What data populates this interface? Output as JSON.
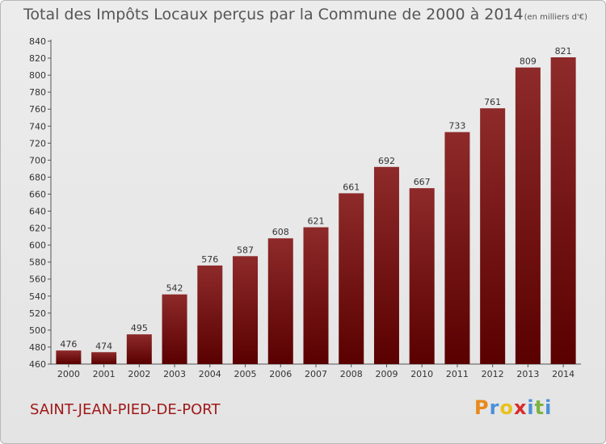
{
  "chart_data": {
    "type": "bar",
    "title": "Total des Impôts Locaux perçus par la Commune de 2000 à 2014",
    "unit": "(en milliers d'€)",
    "categories": [
      "2000",
      "2001",
      "2002",
      "2003",
      "2004",
      "2005",
      "2006",
      "2007",
      "2008",
      "2009",
      "2010",
      "2011",
      "2012",
      "2013",
      "2014"
    ],
    "values": [
      476,
      474,
      495,
      542,
      576,
      587,
      608,
      621,
      661,
      692,
      667,
      733,
      761,
      809,
      821
    ],
    "ylim": [
      460,
      840
    ],
    "yticks": [
      460,
      480,
      500,
      520,
      540,
      560,
      580,
      600,
      620,
      640,
      660,
      680,
      700,
      720,
      740,
      760,
      780,
      800,
      820,
      840
    ],
    "grid": false,
    "bar_color": "#8b1a1a",
    "xlabel": "",
    "ylabel": ""
  },
  "commune": "SAINT-JEAN-PIED-DE-PORT",
  "logo": {
    "letters": [
      "P",
      "r",
      "o",
      "x",
      "i",
      "t",
      "i"
    ],
    "colors": [
      "#e8891c",
      "#4a90d9",
      "#e8c21c",
      "#d92b2b",
      "#4a90d9",
      "#7cb342",
      "#4a90d9"
    ]
  }
}
